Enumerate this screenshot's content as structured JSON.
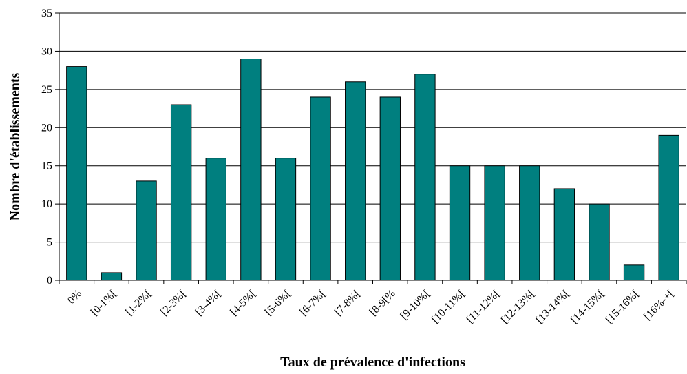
{
  "chart_data": {
    "type": "bar",
    "title": "",
    "xlabel": "Taux de prévalence d'infections",
    "ylabel": "Nombre d'établissements",
    "categories": [
      "0%",
      "[0-1%[",
      "[1-2%[",
      "[2-3%[",
      "[3-4%[",
      "[4-5%[",
      "[5-6%[",
      "[6-7%[",
      "[7-8%[",
      "[8-9[%",
      "[9-10%[",
      "[10-11%[",
      "[11-12%[",
      "[12-13%[",
      "[13-14%[",
      "[14-15%[",
      "[15-16%[",
      "[16%-+["
    ],
    "values": [
      28,
      1,
      13,
      23,
      16,
      29,
      16,
      24,
      26,
      24,
      27,
      15,
      15,
      15,
      12,
      10,
      2,
      19
    ],
    "ylim": [
      0,
      35
    ],
    "yticks": [
      0,
      5,
      10,
      15,
      20,
      25,
      30,
      35
    ],
    "grid": true,
    "legend": "none",
    "bar_color": "#007F7F"
  }
}
